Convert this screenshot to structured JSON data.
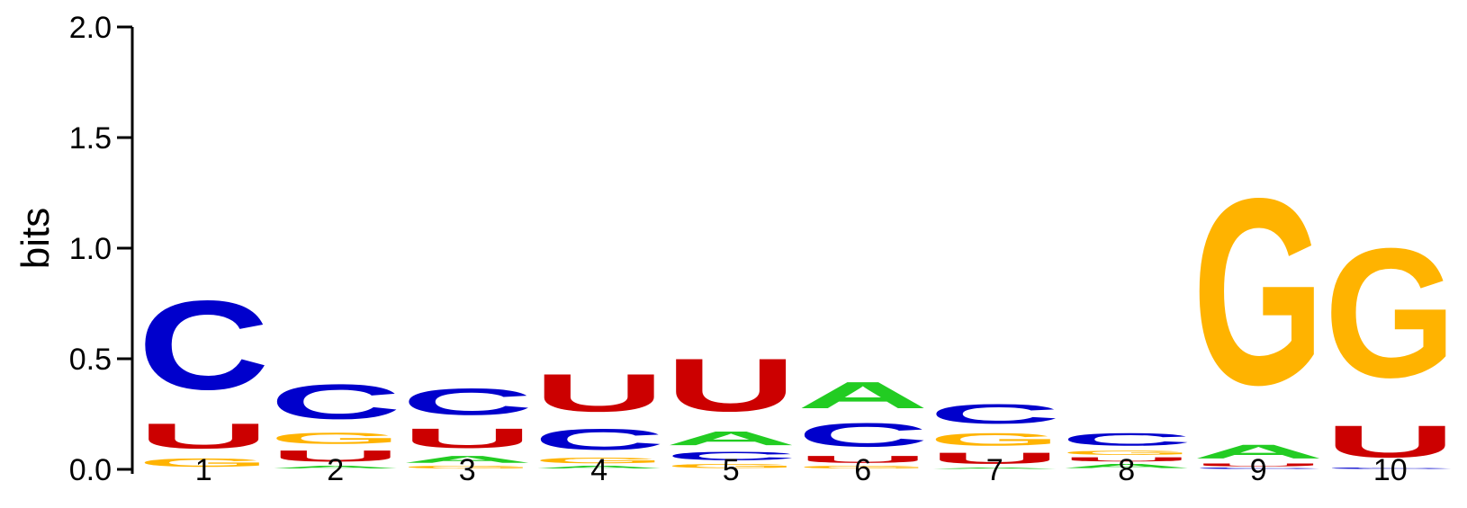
{
  "chart_data": {
    "type": "sequence_logo",
    "ylabel": "bits",
    "ylim": [
      0,
      2.0
    ],
    "yticks": [
      "0.0",
      "0.5",
      "1.0",
      "1.5",
      "2.0"
    ],
    "colors": {
      "A": "#22cc22",
      "C": "#0000cc",
      "G": "#ffb300",
      "U": "#cc0000"
    },
    "positions": [
      {
        "label": "1",
        "stack": [
          {
            "letter": "G",
            "bits": 0.06
          },
          {
            "letter": "U",
            "bits": 0.18
          },
          {
            "letter": "C",
            "bits": 0.64
          }
        ]
      },
      {
        "label": "2",
        "stack": [
          {
            "letter": "A",
            "bits": 0.02
          },
          {
            "letter": "U",
            "bits": 0.08
          },
          {
            "letter": "G",
            "bits": 0.08
          },
          {
            "letter": "C",
            "bits": 0.25
          }
        ]
      },
      {
        "label": "3",
        "stack": [
          {
            "letter": "G",
            "bits": 0.02
          },
          {
            "letter": "A",
            "bits": 0.05
          },
          {
            "letter": "U",
            "bits": 0.14
          },
          {
            "letter": "C",
            "bits": 0.19
          }
        ]
      },
      {
        "label": "4",
        "stack": [
          {
            "letter": "A",
            "bits": 0.02
          },
          {
            "letter": "G",
            "bits": 0.04
          },
          {
            "letter": "C",
            "bits": 0.15
          },
          {
            "letter": "U",
            "bits": 0.27
          }
        ]
      },
      {
        "label": "5",
        "stack": [
          {
            "letter": "G",
            "bits": 0.03
          },
          {
            "letter": "C",
            "bits": 0.06
          },
          {
            "letter": "A",
            "bits": 0.1
          },
          {
            "letter": "U",
            "bits": 0.38
          }
        ]
      },
      {
        "label": "6",
        "stack": [
          {
            "letter": "G",
            "bits": 0.02
          },
          {
            "letter": "U",
            "bits": 0.05
          },
          {
            "letter": "C",
            "bits": 0.17
          },
          {
            "letter": "A",
            "bits": 0.19
          }
        ]
      },
      {
        "label": "7",
        "stack": [
          {
            "letter": "A",
            "bits": 0.01
          },
          {
            "letter": "U",
            "bits": 0.08
          },
          {
            "letter": "G",
            "bits": 0.09
          },
          {
            "letter": "C",
            "bits": 0.14
          }
        ]
      },
      {
        "label": "8",
        "stack": [
          {
            "letter": "A",
            "bits": 0.03
          },
          {
            "letter": "U",
            "bits": 0.03
          },
          {
            "letter": "G",
            "bits": 0.03
          },
          {
            "letter": "C",
            "bits": 0.09
          }
        ]
      },
      {
        "label": "9",
        "stack": [
          {
            "letter": "C",
            "bits": 0.01
          },
          {
            "letter": "U",
            "bits": 0.02
          },
          {
            "letter": "A",
            "bits": 0.1
          },
          {
            "letter": "G",
            "bits": 1.34
          }
        ]
      },
      {
        "label": "10",
        "stack": [
          {
            "letter": "C",
            "bits": 0.01
          },
          {
            "letter": "U",
            "bits": 0.23
          },
          {
            "letter": "G",
            "bits": 0.93
          }
        ]
      }
    ]
  }
}
